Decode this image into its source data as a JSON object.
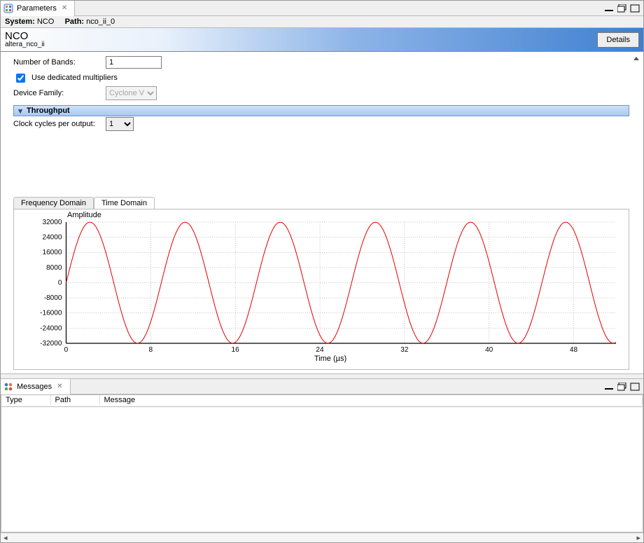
{
  "tabs": {
    "parameters": {
      "label": "Parameters"
    },
    "messages": {
      "label": "Messages"
    }
  },
  "system_line": {
    "system_label": "System:",
    "system_value": "NCO",
    "path_label": "Path:",
    "path_value": "nco_ii_0"
  },
  "titlebar": {
    "title": "NCO",
    "subtitle": "altera_nco_ii",
    "details_label": "Details"
  },
  "form": {
    "num_bands": {
      "label": "Number of Bands:",
      "value": "1"
    },
    "use_mult": {
      "label": "Use dedicated multipliers",
      "checked": true
    },
    "device_family": {
      "label": "Device Family:",
      "value": "Cyclone V",
      "options": [
        "Cyclone V"
      ]
    },
    "throughput_header": "Throughput",
    "clk_per_output": {
      "label": "Clock cycles per output:",
      "value": "1",
      "options": [
        "1"
      ]
    }
  },
  "chart_tabs": {
    "freq": "Frequency Domain",
    "time": "Time Domain",
    "active": "time"
  },
  "chart": {
    "type": "line",
    "title": "Amplitude",
    "xlabel": "Time (µs)",
    "series_color": "#e60000",
    "line_width": 1.0,
    "background_color": "#ffffff",
    "grid_color": "#888888",
    "grid_dasharray": "1 2",
    "axis_color": "#000000",
    "tick_fontsize": 10,
    "xlim": [
      0,
      52
    ],
    "ylim": [
      -32000,
      32000
    ],
    "xticks": [
      0,
      8,
      16,
      24,
      32,
      40,
      48
    ],
    "yticks": [
      -32000,
      -24000,
      -16000,
      -8000,
      0,
      8000,
      16000,
      24000,
      32000
    ],
    "sine": {
      "amplitude": 32000,
      "period_us": 9.0,
      "phase_offset_us": 0,
      "samples": 260
    }
  },
  "messages_panel": {
    "columns": [
      "Type",
      "Path",
      "Message"
    ],
    "col_widths": [
      "70px",
      "70px",
      "auto"
    ],
    "rows": []
  },
  "colors": {
    "header_grad_start": "#fdfdfd",
    "header_grad_end": "#3f7fd0",
    "section_grad_start": "#cfe1f7",
    "section_grad_end": "#a9c9ee"
  }
}
